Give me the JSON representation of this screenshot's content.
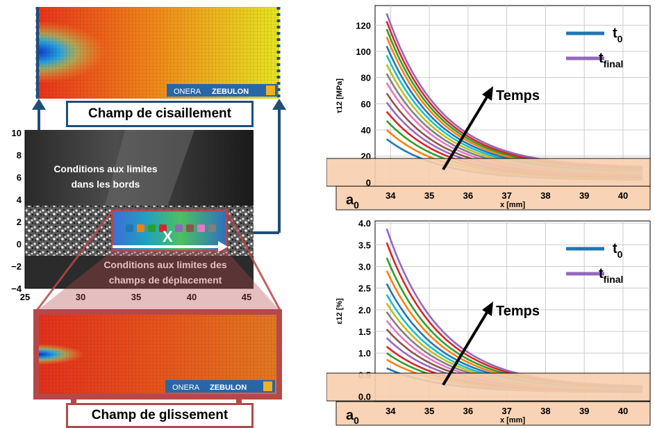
{
  "shear_field": {
    "caption": "Champ de cisaillement",
    "logo_text": "ONERA",
    "logo_brand": "ZEBULON"
  },
  "slip_field": {
    "caption": "Champ de glissement",
    "logo_text": "ONERA",
    "logo_brand": "ZEBULON"
  },
  "dic": {
    "label_edges_line1": "Conditions aux limites",
    "label_edges_line2": "dans les bords",
    "label_disp_line1": "Conditions aux limites des",
    "label_disp_line2": "champs de déplacement",
    "marker": "X",
    "x_ticks": [
      "25",
      "30",
      "35",
      "40",
      "45"
    ],
    "y_ticks": [
      "10",
      "8",
      "6",
      "4",
      "2",
      "0",
      "−2",
      "−4"
    ]
  },
  "colors": {
    "frame_blue": "#1f4e79",
    "frame_red": "#b5484a",
    "band": "#f8cfae",
    "t0": "#1f77b4",
    "tfinal": "#9467bd"
  },
  "chart_data": [
    {
      "type": "line",
      "ylabel": "τ12 [MPa]",
      "xlabel": "x [mm]",
      "xlim": [
        33.6,
        40.7
      ],
      "ylim": [
        -3,
        135
      ],
      "x_ticks": [
        "34",
        "35",
        "36",
        "37",
        "38",
        "39",
        "40"
      ],
      "y_ticks": [
        "0",
        "20",
        "40",
        "60",
        "80",
        "100",
        "120"
      ],
      "legend": [
        {
          "main": "t",
          "sub": "0"
        },
        {
          "main": "t",
          "sub": "final"
        }
      ],
      "annotation": "Temps",
      "band_label_main": "a",
      "band_label_sub": "0",
      "curve_start_x": 33.9,
      "curve_end_x": 40.5,
      "series_start_values": [
        33,
        40,
        47,
        54,
        61,
        68,
        76,
        83,
        90,
        97,
        104,
        111,
        117,
        123,
        129
      ],
      "series_end_values": [
        2,
        2.7,
        3.4,
        4.1,
        4.8,
        5.5,
        6.2,
        6.9,
        7.6,
        8.3,
        9,
        9.7,
        10.4,
        11.1,
        12
      ]
    },
    {
      "type": "line",
      "ylabel": "ε12 [%]",
      "xlabel": "x [mm]",
      "xlim": [
        33.6,
        40.7
      ],
      "ylim": [
        -0.12,
        4.05
      ],
      "x_ticks": [
        "34",
        "35",
        "36",
        "37",
        "38",
        "39",
        "40"
      ],
      "y_ticks": [
        "0.0",
        "0.5",
        "1.0",
        "1.5",
        "2.0",
        "2.5",
        "3.0",
        "3.5",
        "4.0"
      ],
      "legend": [
        {
          "main": "t",
          "sub": "0"
        },
        {
          "main": "t",
          "sub": "final"
        }
      ],
      "annotation": "Temps",
      "band_label_main": "a",
      "band_label_sub": "0",
      "curve_start_x": 33.9,
      "curve_end_x": 40.5,
      "series_start_values": [
        0.65,
        0.85,
        1.0,
        1.15,
        1.35,
        1.55,
        1.75,
        1.95,
        2.15,
        2.35,
        2.6,
        2.9,
        3.2,
        3.55,
        3.87
      ],
      "series_end_values": [
        0.1,
        0.11,
        0.12,
        0.13,
        0.14,
        0.15,
        0.16,
        0.17,
        0.18,
        0.19,
        0.2,
        0.21,
        0.22,
        0.23,
        0.24
      ]
    }
  ]
}
